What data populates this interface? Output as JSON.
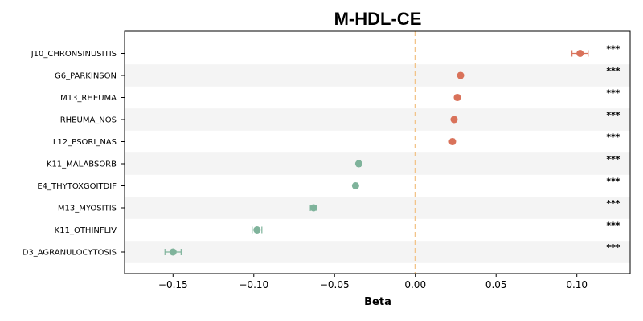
{
  "chart_data": {
    "type": "scatter",
    "subtype": "forest-plot",
    "title": "M-HDL-CE",
    "xlabel": "Beta",
    "ylabel": "",
    "xlim": [
      -0.18,
      0.133
    ],
    "xticks": [
      -0.15,
      -0.1,
      -0.05,
      0.0,
      0.05,
      0.1
    ],
    "xtick_labels": [
      "−0.15",
      "−0.10",
      "−0.05",
      "0.00",
      "0.05",
      "0.10"
    ],
    "reference_line": 0.0,
    "grid": false,
    "alternating_row_shading": true,
    "colors": {
      "positive": "#d9725a",
      "negative": "#7fb39b",
      "reference_line": "#f2c489",
      "row_shade": "#f4f4f4"
    },
    "rows": [
      {
        "label": "J10_CHRONSINUSITIS",
        "beta": 0.102,
        "ci_low": 0.097,
        "ci_high": 0.107,
        "sig": "***"
      },
      {
        "label": "G6_PARKINSON",
        "beta": 0.028,
        "ci_low": 0.027,
        "ci_high": 0.029,
        "sig": "***"
      },
      {
        "label": "M13_RHEUMA",
        "beta": 0.026,
        "ci_low": 0.025,
        "ci_high": 0.027,
        "sig": "***"
      },
      {
        "label": "RHEUMA_NOS",
        "beta": 0.024,
        "ci_low": 0.023,
        "ci_high": 0.025,
        "sig": "***"
      },
      {
        "label": "L12_PSORI_NAS",
        "beta": 0.023,
        "ci_low": 0.022,
        "ci_high": 0.024,
        "sig": "***"
      },
      {
        "label": "K11_MALABSORB",
        "beta": -0.035,
        "ci_low": -0.036,
        "ci_high": -0.034,
        "sig": "***"
      },
      {
        "label": "E4_THYTOXGOITDIF",
        "beta": -0.037,
        "ci_low": -0.038,
        "ci_high": -0.036,
        "sig": "***"
      },
      {
        "label": "M13_MYOSITIS",
        "beta": -0.063,
        "ci_low": -0.065,
        "ci_high": -0.061,
        "sig": "***"
      },
      {
        "label": "K11_OTHINFLIV",
        "beta": -0.098,
        "ci_low": -0.101,
        "ci_high": -0.095,
        "sig": "***"
      },
      {
        "label": "D3_AGRANULOCYTOSIS",
        "beta": -0.15,
        "ci_low": -0.155,
        "ci_high": -0.145,
        "sig": "***"
      }
    ]
  }
}
